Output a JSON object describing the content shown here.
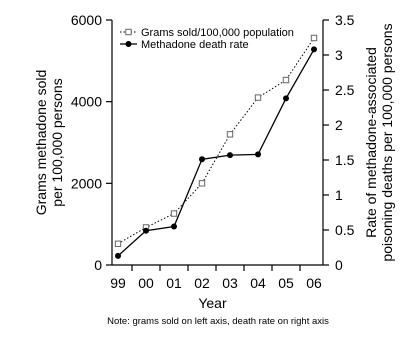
{
  "chart_data": {
    "type": "line",
    "title": "",
    "categories": [
      "99",
      "00",
      "01",
      "02",
      "03",
      "04",
      "05",
      "06"
    ],
    "xlabel": "Year",
    "ylabel_left": "Grams methadone sold per 100,000 persons",
    "ylabel_left_lines": [
      "Grams methadone sold",
      "per 100,000 persons"
    ],
    "ylabel_right": "Rate of methadone-associated poisoning deaths per 100,000 persons",
    "ylabel_right_lines": [
      "Rate of methadone-associated",
      "poisoning deaths per 100,000 persons"
    ],
    "ylim_left": [
      0,
      6000
    ],
    "yticks_left": [
      "0",
      "2000",
      "4000",
      "6000"
    ],
    "ylim_right": [
      0,
      3.5
    ],
    "yticks_right": [
      "0",
      "0.5",
      "1",
      "1.5",
      "2",
      "2.5",
      "3",
      "3.5"
    ],
    "series": [
      {
        "name": "Grams sold/100,000 population",
        "axis": "left",
        "style": "dotted",
        "marker": "square-open",
        "color": "#000000",
        "values": [
          520,
          920,
          1260,
          2000,
          3200,
          4100,
          4530,
          5560
        ]
      },
      {
        "name": "Methadone death rate",
        "axis": "right",
        "style": "solid",
        "marker": "circle-filled",
        "color": "#000000",
        "values": [
          0.13,
          0.49,
          0.55,
          1.51,
          1.57,
          1.58,
          2.38,
          3.08
        ]
      }
    ],
    "legend_position": "top-left",
    "grid": false
  },
  "note": "Note: grams sold on left axis, death rate on right axis"
}
